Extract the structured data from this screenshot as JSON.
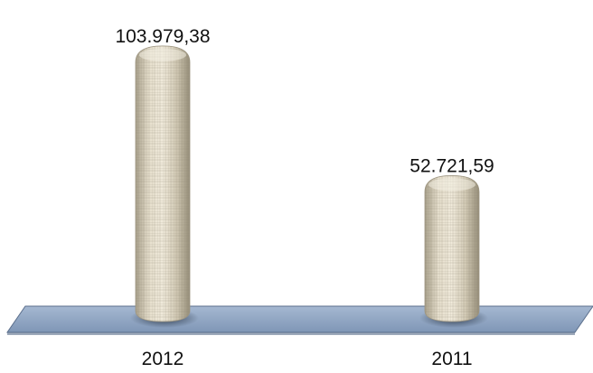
{
  "chart_data": {
    "type": "bar",
    "title": "",
    "xlabel": "",
    "ylabel": "",
    "categories": [
      "2012",
      "2011"
    ],
    "values": [
      103979.38,
      52721.59
    ],
    "value_labels": [
      "103.979,38",
      "52.721,59"
    ],
    "category_labels": [
      "2012",
      "2011"
    ],
    "ylim": [
      0,
      110000
    ],
    "grid": false,
    "legend": "none",
    "style": "3d-cylinder",
    "colors": {
      "bar_fill": "#d8d0bd",
      "bar_shade": "#9e9682",
      "floor": "#8fa6c3",
      "floor_edge": "#5b6f8c"
    }
  }
}
